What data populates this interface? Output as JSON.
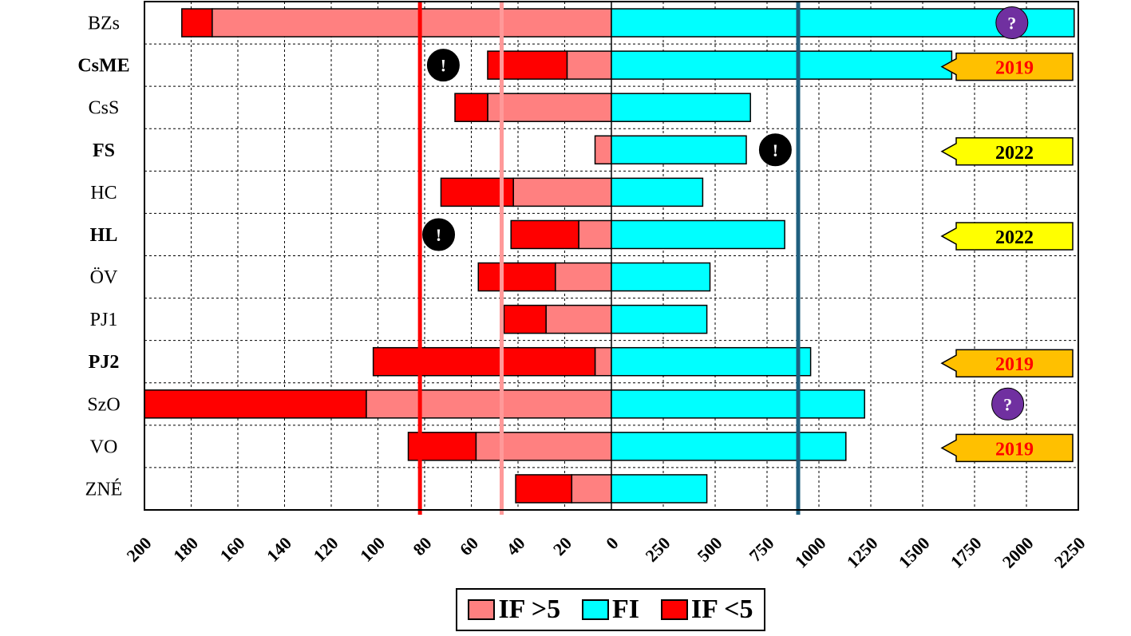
{
  "chart_data": {
    "type": "bar",
    "orientation": "horizontal-diverging",
    "categories": [
      "BZs",
      "CsME",
      "CsS",
      "FS",
      "HC",
      "HL",
      "ÖV",
      "PJ1",
      "PJ2",
      "SzO",
      "VO",
      "ZNÉ"
    ],
    "bold_categories": [
      "CsME",
      "FS",
      "HL",
      "PJ2"
    ],
    "left_axis": {
      "ticks": [
        "200",
        "180",
        "160",
        "140",
        "120",
        "100",
        "80",
        "60",
        "40",
        "20",
        "0"
      ],
      "range": [
        200,
        0
      ]
    },
    "right_axis": {
      "ticks": [
        "250",
        "500",
        "750",
        "1000",
        "1250",
        "1500",
        "1750",
        "2000",
        "2250"
      ],
      "range": [
        0,
        2250
      ]
    },
    "series": [
      {
        "name": "IF >5",
        "side": "left",
        "color": "#ff8080",
        "values": [
          171,
          19,
          53,
          7,
          42,
          14,
          24,
          28,
          7,
          105,
          58,
          17
        ]
      },
      {
        "name": "IF <5",
        "side": "left",
        "color": "#ff0000",
        "values": [
          13,
          34,
          14,
          0,
          31,
          29,
          33,
          18,
          95,
          95,
          29,
          24
        ]
      },
      {
        "name": "FI",
        "side": "right",
        "color": "#00ffff",
        "values": [
          2230,
          1640,
          670,
          650,
          440,
          835,
          475,
          460,
          960,
          1220,
          1130,
          460
        ]
      }
    ],
    "reference_lines": [
      {
        "side": "left",
        "value": 82,
        "color": "#ff0000"
      },
      {
        "side": "left",
        "value": 47,
        "color": "#ff9999"
      },
      {
        "side": "right",
        "value": 900,
        "color": "#1f5f7f"
      }
    ],
    "year_badges": [
      {
        "category": "CsME",
        "label": "2019",
        "bg": "#ffc000",
        "fg": "#ff0000"
      },
      {
        "category": "FS",
        "label": "2022",
        "bg": "#ffff00",
        "fg": "#000000"
      },
      {
        "category": "HL",
        "label": "2022",
        "bg": "#ffff00",
        "fg": "#000000"
      },
      {
        "category": "PJ2",
        "label": "2019",
        "bg": "#ffc000",
        "fg": "#ff0000"
      },
      {
        "category": "VO",
        "label": "2019",
        "bg": "#ffc000",
        "fg": "#ff0000"
      }
    ],
    "markers": [
      {
        "category": "BZs",
        "symbol": "?",
        "side": "right",
        "value": 1930,
        "color": "#7030a0"
      },
      {
        "category": "SzO",
        "symbol": "?",
        "side": "right",
        "value": 1910,
        "color": "#7030a0"
      },
      {
        "category": "CsME",
        "symbol": "!",
        "side": "left",
        "value": 72,
        "color": "#000000"
      },
      {
        "category": "FS",
        "symbol": "!",
        "side": "right",
        "value": 790,
        "color": "#000000"
      },
      {
        "category": "HL",
        "symbol": "!",
        "side": "left",
        "value": 74,
        "color": "#000000"
      }
    ],
    "legend": {
      "position": "bottom-center",
      "items": [
        {
          "label": "IF >5",
          "color": "#ff8080"
        },
        {
          "label": "FI",
          "color": "#00ffff"
        },
        {
          "label": "IF <5",
          "color": "#ff0000"
        }
      ]
    },
    "grid": true
  }
}
